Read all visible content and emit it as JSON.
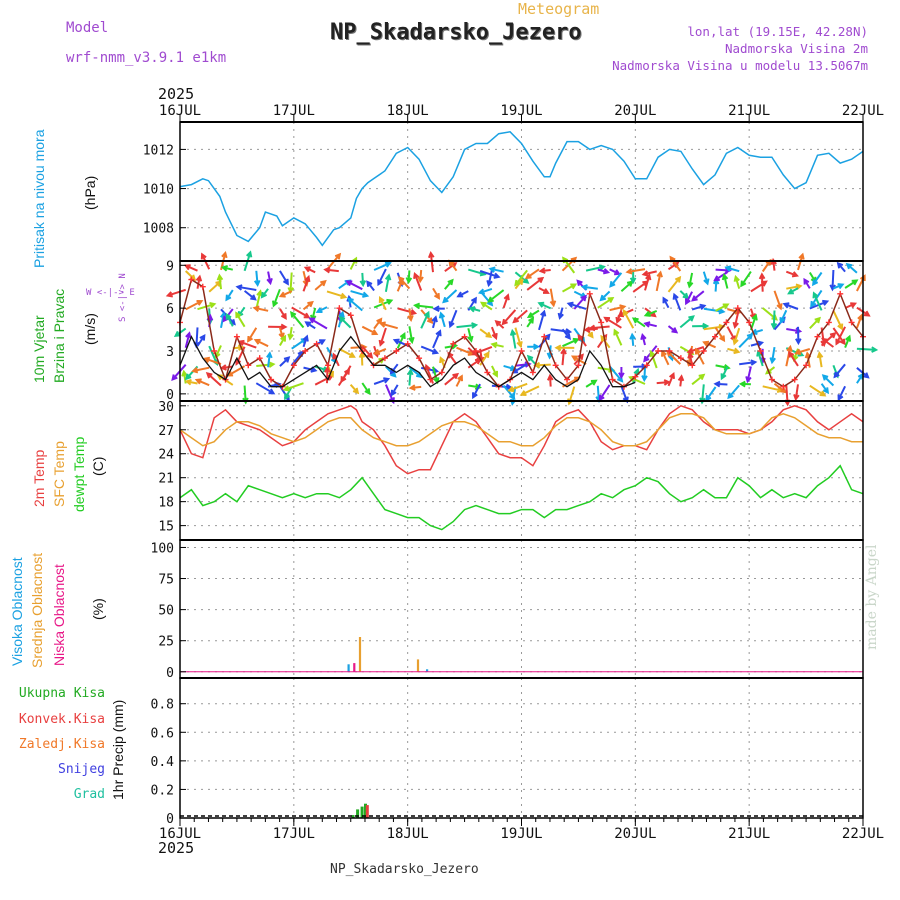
{
  "header": {
    "meteogram": "Meteogram",
    "station": "NP_Skadarsko_Jezero",
    "model_label": "Model",
    "model_value": "wrf-nmm_v3.9.1 e1km",
    "coords": "lon,lat (19.15E, 42.28N)",
    "elevation": "Nadmorska Visina 2m",
    "model_elevation": "Nadmorska Visina u modelu 13.5067m",
    "year": "2025"
  },
  "footer": {
    "station": "NP_Skadarsko_Jezero",
    "credit": "made by Angel"
  },
  "colors": {
    "pressure": "#1ba1e2",
    "wind": "#22aa22",
    "temp2m": "#e84040",
    "sfc": "#e8a030",
    "dewpt": "#22cc22",
    "cloud_high": "#1ba1e2",
    "cloud_mid": "#e8a030",
    "cloud_low": "#e81888",
    "precip_total": "#22aa22",
    "precip_conv": "#e84040",
    "precip_strat": "#f07828",
    "snow": "#4040e0",
    "hail": "#20c0a0"
  },
  "wind_compass": "W <-|-> E",
  "wind_compass_v": "S <-|-> N",
  "x_axis": {
    "ticks": [
      "16JUL",
      "17JUL",
      "18JUL",
      "19JUL",
      "20JUL",
      "21JUL",
      "22JUL"
    ]
  },
  "chart_data": [
    {
      "type": "line",
      "name": "pressure",
      "ylabel": "Pritisak na nivou mora",
      "unit": "(hPa)",
      "yticks": [
        "1008",
        "1010",
        "1012"
      ],
      "ylim": [
        1006.3,
        1013.4
      ],
      "x": [
        0,
        0.1,
        0.2,
        0.25,
        0.35,
        0.4,
        0.5,
        0.6,
        0.7,
        0.75,
        0.85,
        0.9,
        1,
        1.1,
        1.2,
        1.25,
        1.35,
        1.4,
        1.5,
        1.55,
        1.6,
        1.65,
        1.7,
        1.8,
        1.9,
        2,
        2.1,
        2.2,
        2.3,
        2.4,
        2.5,
        2.6,
        2.7,
        2.8,
        2.9,
        3,
        3.1,
        3.2,
        3.25,
        3.3,
        3.4,
        3.5,
        3.6,
        3.7,
        3.8,
        3.9,
        4,
        4.1,
        4.2,
        4.3,
        4.4,
        4.5,
        4.6,
        4.7,
        4.8,
        4.9,
        5,
        5.1,
        5.2,
        5.3,
        5.4,
        5.5,
        5.6,
        5.7,
        5.8,
        5.9,
        6
      ],
      "values": [
        1010.1,
        1010.2,
        1010.5,
        1010.4,
        1009.6,
        1008.8,
        1007.6,
        1007.3,
        1008.0,
        1008.8,
        1008.6,
        1008.1,
        1008.5,
        1008.2,
        1007.5,
        1007.1,
        1007.9,
        1008.0,
        1008.5,
        1009.5,
        1010.0,
        1010.3,
        1010.5,
        1010.9,
        1011.8,
        1012.1,
        1011.5,
        1010.4,
        1009.8,
        1010.6,
        1012.0,
        1012.3,
        1012.3,
        1012.8,
        1012.9,
        1012.3,
        1011.4,
        1010.6,
        1010.6,
        1011.3,
        1012.4,
        1012.4,
        1012.0,
        1012.2,
        1012.0,
        1011.4,
        1010.5,
        1010.5,
        1011.6,
        1012.0,
        1011.9,
        1011.0,
        1010.2,
        1010.7,
        1011.8,
        1012.1,
        1011.7,
        1011.6,
        1011.6,
        1010.7,
        1010.0,
        1010.3,
        1011.7,
        1011.8,
        1011.3,
        1011.5,
        1011.9
      ]
    },
    {
      "type": "line",
      "name": "wind",
      "ylabel_1": "10m Vjetar",
      "ylabel_2": "Brzina i Pravac",
      "unit": "(m/s)",
      "yticks": [
        "0",
        "3",
        "6",
        "9"
      ],
      "ylim": [
        -0.5,
        9.3
      ],
      "series": [
        {
          "label": "speed-max",
          "x": [
            0,
            0.1,
            0.2,
            0.3,
            0.4,
            0.5,
            0.6,
            0.7,
            0.8,
            0.9,
            1,
            1.1,
            1.2,
            1.3,
            1.4,
            1.5,
            1.6,
            1.7,
            1.8,
            1.9,
            2,
            2.1,
            2.2,
            2.3,
            2.4,
            2.5,
            2.6,
            2.7,
            2.8,
            2.9,
            3,
            3.1,
            3.2,
            3.3,
            3.4,
            3.5,
            3.6,
            3.7,
            3.8,
            3.9,
            4,
            4.1,
            4.2,
            4.3,
            4.4,
            4.5,
            4.6,
            4.7,
            4.8,
            4.9,
            5,
            5.1,
            5.2,
            5.3,
            5.4,
            5.5,
            5.6,
            5.7,
            5.8,
            5.9,
            6
          ],
          "values": [
            5,
            8,
            7.5,
            3,
            1,
            4,
            2,
            2.5,
            1,
            0.5,
            2,
            3,
            3.5,
            2,
            6,
            5.5,
            3,
            2,
            2.5,
            3,
            3.5,
            2.5,
            1,
            1.5,
            3.5,
            4,
            3,
            1.5,
            0.5,
            1,
            3,
            1.5,
            4,
            2,
            1,
            2,
            7,
            5,
            1,
            0.5,
            1.2,
            2,
            3,
            3,
            2.5,
            2,
            3,
            4,
            5,
            6,
            5,
            3,
            1,
            0.5,
            1,
            2,
            4,
            5,
            7,
            5,
            4
          ]
        },
        {
          "label": "speed-mean",
          "x": [
            0,
            0.1,
            0.2,
            0.3,
            0.4,
            0.5,
            0.6,
            0.7,
            0.8,
            0.9,
            1,
            1.1,
            1.2,
            1.3,
            1.4,
            1.5,
            1.6,
            1.7,
            1.8,
            1.9,
            2,
            2.1,
            2.2,
            2.3,
            2.4,
            2.5,
            2.6,
            2.7,
            2.8,
            2.9,
            3,
            3.1,
            3.2,
            3.3,
            3.4,
            3.5,
            3.6,
            3.7,
            3.8,
            3.9,
            4
          ],
          "values": [
            2,
            4,
            2.5,
            1.5,
            1,
            2.5,
            1,
            1.5,
            0.5,
            0.5,
            1,
            1.5,
            2,
            1,
            3,
            4,
            3,
            2,
            2,
            1.5,
            2,
            1.5,
            0.5,
            1,
            2,
            2.5,
            1.5,
            1,
            0.5,
            1,
            1.5,
            1,
            2,
            1,
            0.5,
            1,
            3,
            2,
            0.5,
            0.5,
            0.8
          ]
        }
      ]
    },
    {
      "type": "line",
      "name": "temperature",
      "ylabels": [
        "2m Temp",
        "SFC Temp",
        "dewpt Temp"
      ],
      "unit": "(C)",
      "yticks": [
        "15",
        "18",
        "21",
        "24",
        "27",
        "30"
      ],
      "ylim": [
        13.2,
        30.6
      ],
      "series": [
        {
          "label": "2m Temp",
          "x": [
            0,
            0.1,
            0.2,
            0.25,
            0.3,
            0.35,
            0.4,
            0.5,
            0.6,
            0.7,
            0.8,
            0.9,
            1,
            1.1,
            1.2,
            1.3,
            1.4,
            1.5,
            1.55,
            1.6,
            1.7,
            1.8,
            1.9,
            2,
            2.1,
            2.2,
            2.3,
            2.4,
            2.5,
            2.6,
            2.7,
            2.8,
            2.9,
            3,
            3.1,
            3.2,
            3.3,
            3.4,
            3.5,
            3.6,
            3.7,
            3.8,
            3.9,
            4,
            4.1,
            4.2,
            4.3,
            4.4,
            4.5,
            4.6,
            4.7,
            4.8,
            4.9,
            5,
            5.1,
            5.2,
            5.3,
            5.4,
            5.5,
            5.6,
            5.7,
            5.8,
            5.9,
            6
          ],
          "values": [
            27,
            24,
            23.5,
            26,
            28.5,
            29,
            29.5,
            28,
            27.5,
            27,
            26,
            25,
            25.5,
            27,
            28,
            29,
            29.5,
            30,
            29.5,
            28,
            27,
            25,
            22.5,
            21.5,
            22,
            22,
            25,
            28,
            29,
            28,
            26,
            24,
            23.5,
            23.5,
            22.5,
            25,
            28,
            29,
            29.5,
            28,
            25.5,
            24.5,
            25,
            25,
            24.5,
            27,
            29,
            30,
            29.5,
            28,
            27,
            27,
            27,
            26.5,
            27,
            28,
            29.5,
            30,
            29.5,
            28,
            27,
            28,
            29,
            28
          ]
        },
        {
          "label": "SFC Temp",
          "x": [
            0,
            0.1,
            0.2,
            0.3,
            0.4,
            0.5,
            0.6,
            0.7,
            0.8,
            0.9,
            1,
            1.1,
            1.2,
            1.3,
            1.4,
            1.5,
            1.6,
            1.7,
            1.8,
            1.9,
            2,
            2.1,
            2.2,
            2.3,
            2.4,
            2.5,
            2.6,
            2.7,
            2.8,
            2.9,
            3,
            3.1,
            3.2,
            3.3,
            3.4,
            3.5,
            3.6,
            3.7,
            3.8,
            3.9,
            4,
            4.1,
            4.2,
            4.3,
            4.4,
            4.5,
            4.6,
            4.7,
            4.8,
            4.9,
            5,
            5.1,
            5.2,
            5.3,
            5.4,
            5.5,
            5.6,
            5.7,
            5.8,
            5.9,
            6
          ],
          "values": [
            27,
            26,
            25,
            25.5,
            27,
            28,
            28,
            27.5,
            26.5,
            26,
            25.5,
            26,
            27,
            28,
            28.5,
            28.5,
            27,
            26,
            25.5,
            25,
            25,
            25.5,
            26.5,
            27.5,
            28,
            28,
            27.5,
            26.5,
            25.5,
            25.5,
            25,
            25,
            26,
            27.5,
            28.5,
            28.5,
            28,
            27,
            25.5,
            25,
            25,
            25.5,
            27,
            28.5,
            29,
            29,
            28.5,
            27,
            26.5,
            26.5,
            26.5,
            27,
            28.5,
            29,
            28.5,
            27.5,
            26.5,
            26,
            26,
            25.5,
            25.5
          ]
        },
        {
          "label": "dewpt Temp",
          "x": [
            0,
            0.1,
            0.2,
            0.3,
            0.4,
            0.5,
            0.6,
            0.7,
            0.8,
            0.9,
            1,
            1.1,
            1.2,
            1.3,
            1.4,
            1.5,
            1.6,
            1.7,
            1.8,
            1.9,
            2,
            2.1,
            2.2,
            2.3,
            2.4,
            2.5,
            2.6,
            2.7,
            2.8,
            2.9,
            3,
            3.1,
            3.2,
            3.3,
            3.4,
            3.5,
            3.6,
            3.7,
            3.8,
            3.9,
            4,
            4.1,
            4.2,
            4.3,
            4.4,
            4.5,
            4.6,
            4.7,
            4.8,
            4.9,
            5,
            5.1,
            5.2,
            5.3,
            5.4,
            5.5,
            5.6,
            5.7,
            5.8,
            5.9,
            6
          ],
          "values": [
            18.5,
            19.5,
            17.5,
            18,
            19,
            18,
            20,
            19.5,
            19,
            18.5,
            19,
            18.5,
            19,
            19,
            18.5,
            19.5,
            21,
            19,
            17,
            16.5,
            16,
            16,
            15,
            14.5,
            15.5,
            17,
            17.5,
            17,
            16.5,
            16.5,
            17,
            17,
            16,
            17,
            17,
            17.5,
            18,
            19,
            18.5,
            19.5,
            20,
            21,
            20.5,
            19,
            18,
            18.5,
            19.5,
            18.5,
            18.5,
            21,
            20,
            18.5,
            19.5,
            18.5,
            19,
            18.5,
            20,
            21,
            22.5,
            19.5,
            19
          ]
        }
      ]
    },
    {
      "type": "bar",
      "name": "cloud cover",
      "ylabels": [
        "Visoka Oblacnost",
        "Srednja Oblacnost",
        "Niska Oblacnost"
      ],
      "unit": "(%)",
      "yticks": [
        "0",
        "25",
        "50",
        "75",
        "100"
      ],
      "ylim": [
        -5,
        106
      ],
      "series": [
        {
          "label": "Srednja Oblacnost",
          "x": [
            1.58,
            2.09
          ],
          "values": [
            28,
            10
          ]
        },
        {
          "label": "Niska Oblacnost",
          "x": [
            1.53
          ],
          "values": [
            7
          ]
        },
        {
          "label": "Visoka Oblacnost",
          "x": [
            1.48,
            2.17
          ],
          "values": [
            6,
            2
          ]
        }
      ]
    },
    {
      "type": "bar",
      "name": "precipitation",
      "legend": [
        "Ukupna Kisa",
        "Konvek.Kisa",
        "Zaledj.Kisa",
        "Snijeg",
        "Grad"
      ],
      "ylabel": "1hr Precip (mm)",
      "yticks": [
        "0",
        "0.2",
        "0.4",
        "0.6",
        "0.8"
      ],
      "ylim": [
        0,
        0.98
      ],
      "series": [
        {
          "label": "Ukupna Kisa",
          "x": [
            1.52,
            1.56,
            1.6,
            1.63
          ],
          "values": [
            0.02,
            0.06,
            0.08,
            0.1
          ]
        },
        {
          "label": "Konvek.Kisa",
          "x": [
            1.645
          ],
          "values": [
            0.09
          ]
        }
      ]
    }
  ]
}
